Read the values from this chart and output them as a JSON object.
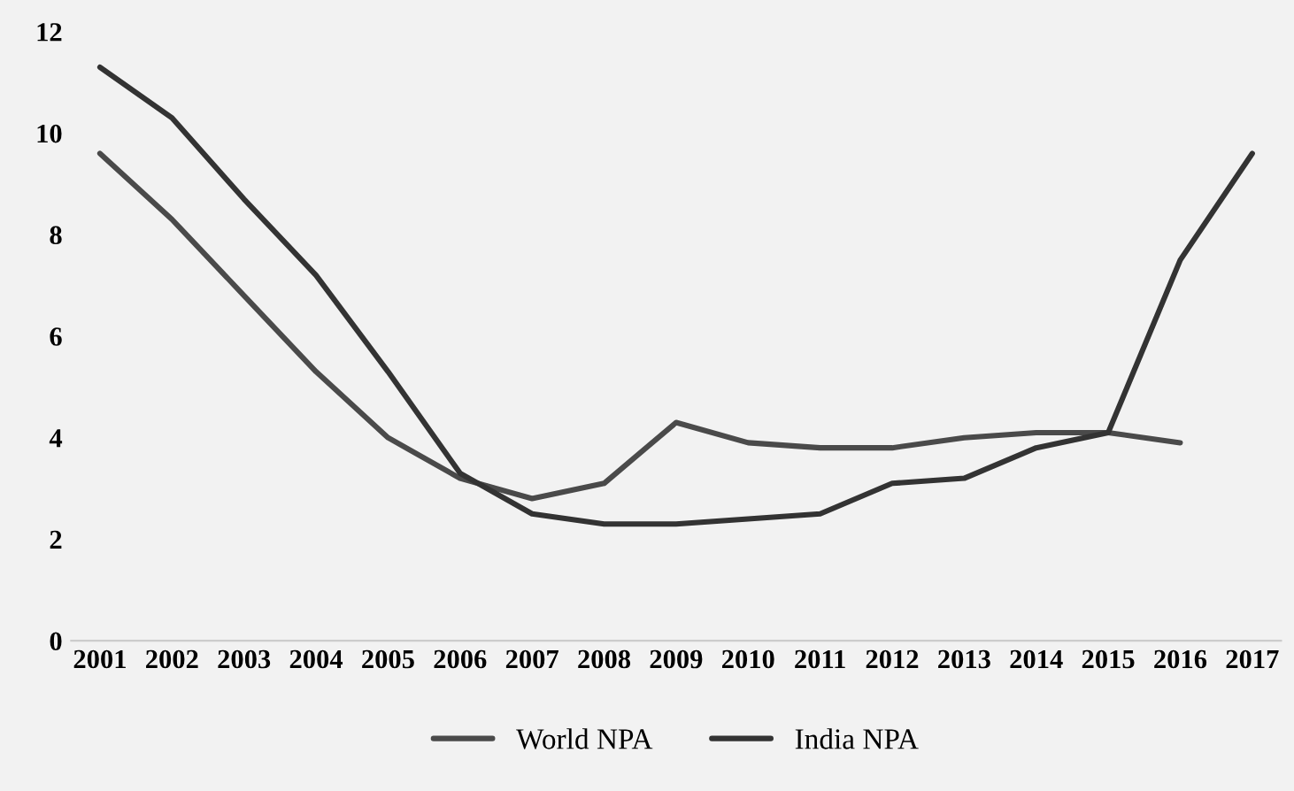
{
  "chart_data": {
    "type": "line",
    "categories": [
      "2001",
      "2002",
      "2003",
      "2004",
      "2005",
      "2006",
      "2007",
      "2008",
      "2009",
      "2010",
      "2011",
      "2012",
      "2013",
      "2014",
      "2015",
      "2016",
      "2017"
    ],
    "series": [
      {
        "name": "World NPA",
        "color": "#4a4a4a",
        "values": [
          9.6,
          8.3,
          6.8,
          5.3,
          4.0,
          3.2,
          2.8,
          3.1,
          4.3,
          3.9,
          3.8,
          3.8,
          4.0,
          4.1,
          4.1,
          3.9,
          null
        ]
      },
      {
        "name": "India NPA",
        "color": "#333333",
        "values": [
          11.3,
          10.3,
          8.7,
          7.2,
          5.3,
          3.3,
          2.5,
          2.3,
          2.3,
          2.4,
          2.5,
          3.1,
          3.2,
          3.8,
          4.1,
          7.5,
          9.6
        ]
      }
    ],
    "ylim": [
      0,
      12
    ],
    "yticks": [
      0,
      2,
      4,
      6,
      8,
      10,
      12
    ],
    "grid": false,
    "legend": "bottom",
    "marker": "none",
    "line_style": "solid"
  }
}
